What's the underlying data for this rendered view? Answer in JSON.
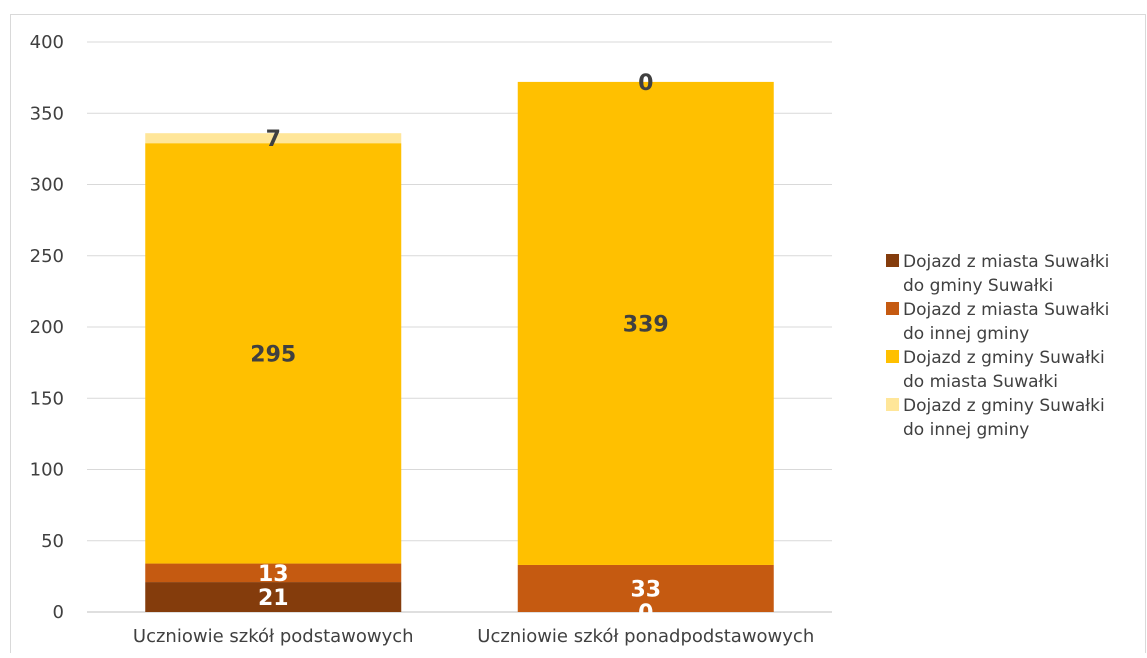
{
  "chart_data": {
    "type": "bar",
    "stacked": true,
    "categories": [
      "Uczniowie szkół podstawowych",
      "Uczniowie szkół ponadpodstawowych"
    ],
    "series": [
      {
        "name": "Dojazd z miasta Suwałki do gminy Suwałki",
        "legend_lines": [
          "Dojazd z miasta Suwałki",
          "do gminy Suwałki"
        ],
        "values": [
          21,
          0
        ],
        "color": "#843C0C",
        "label_color": "#FFFFFF"
      },
      {
        "name": "Dojazd z miasta Suwałki do innej gminy",
        "legend_lines": [
          "Dojazd z miasta Suwałki",
          "do innej gminy"
        ],
        "values": [
          13,
          33
        ],
        "color": "#C55A11",
        "label_color": "#FFFFFF"
      },
      {
        "name": "Dojazd z gminy Suwałki do miasta Suwałki",
        "legend_lines": [
          "Dojazd z gminy Suwałki",
          "do miasta Suwałki"
        ],
        "values": [
          295,
          339
        ],
        "color": "#FFC000",
        "label_color": "#404040"
      },
      {
        "name": "Dojazd z gminy Suwałki do innej gminy",
        "legend_lines": [
          "Dojazd z gminy Suwałki",
          "do innej gminy"
        ],
        "values": [
          7,
          0
        ],
        "color": "#FFE699",
        "label_color": "#404040"
      }
    ],
    "ylim": [
      0,
      400
    ],
    "yticks": [
      0,
      50,
      100,
      150,
      200,
      250,
      300,
      350,
      400
    ],
    "grid": true,
    "legend_position": "right",
    "title": "",
    "xlabel": "",
    "ylabel": ""
  }
}
